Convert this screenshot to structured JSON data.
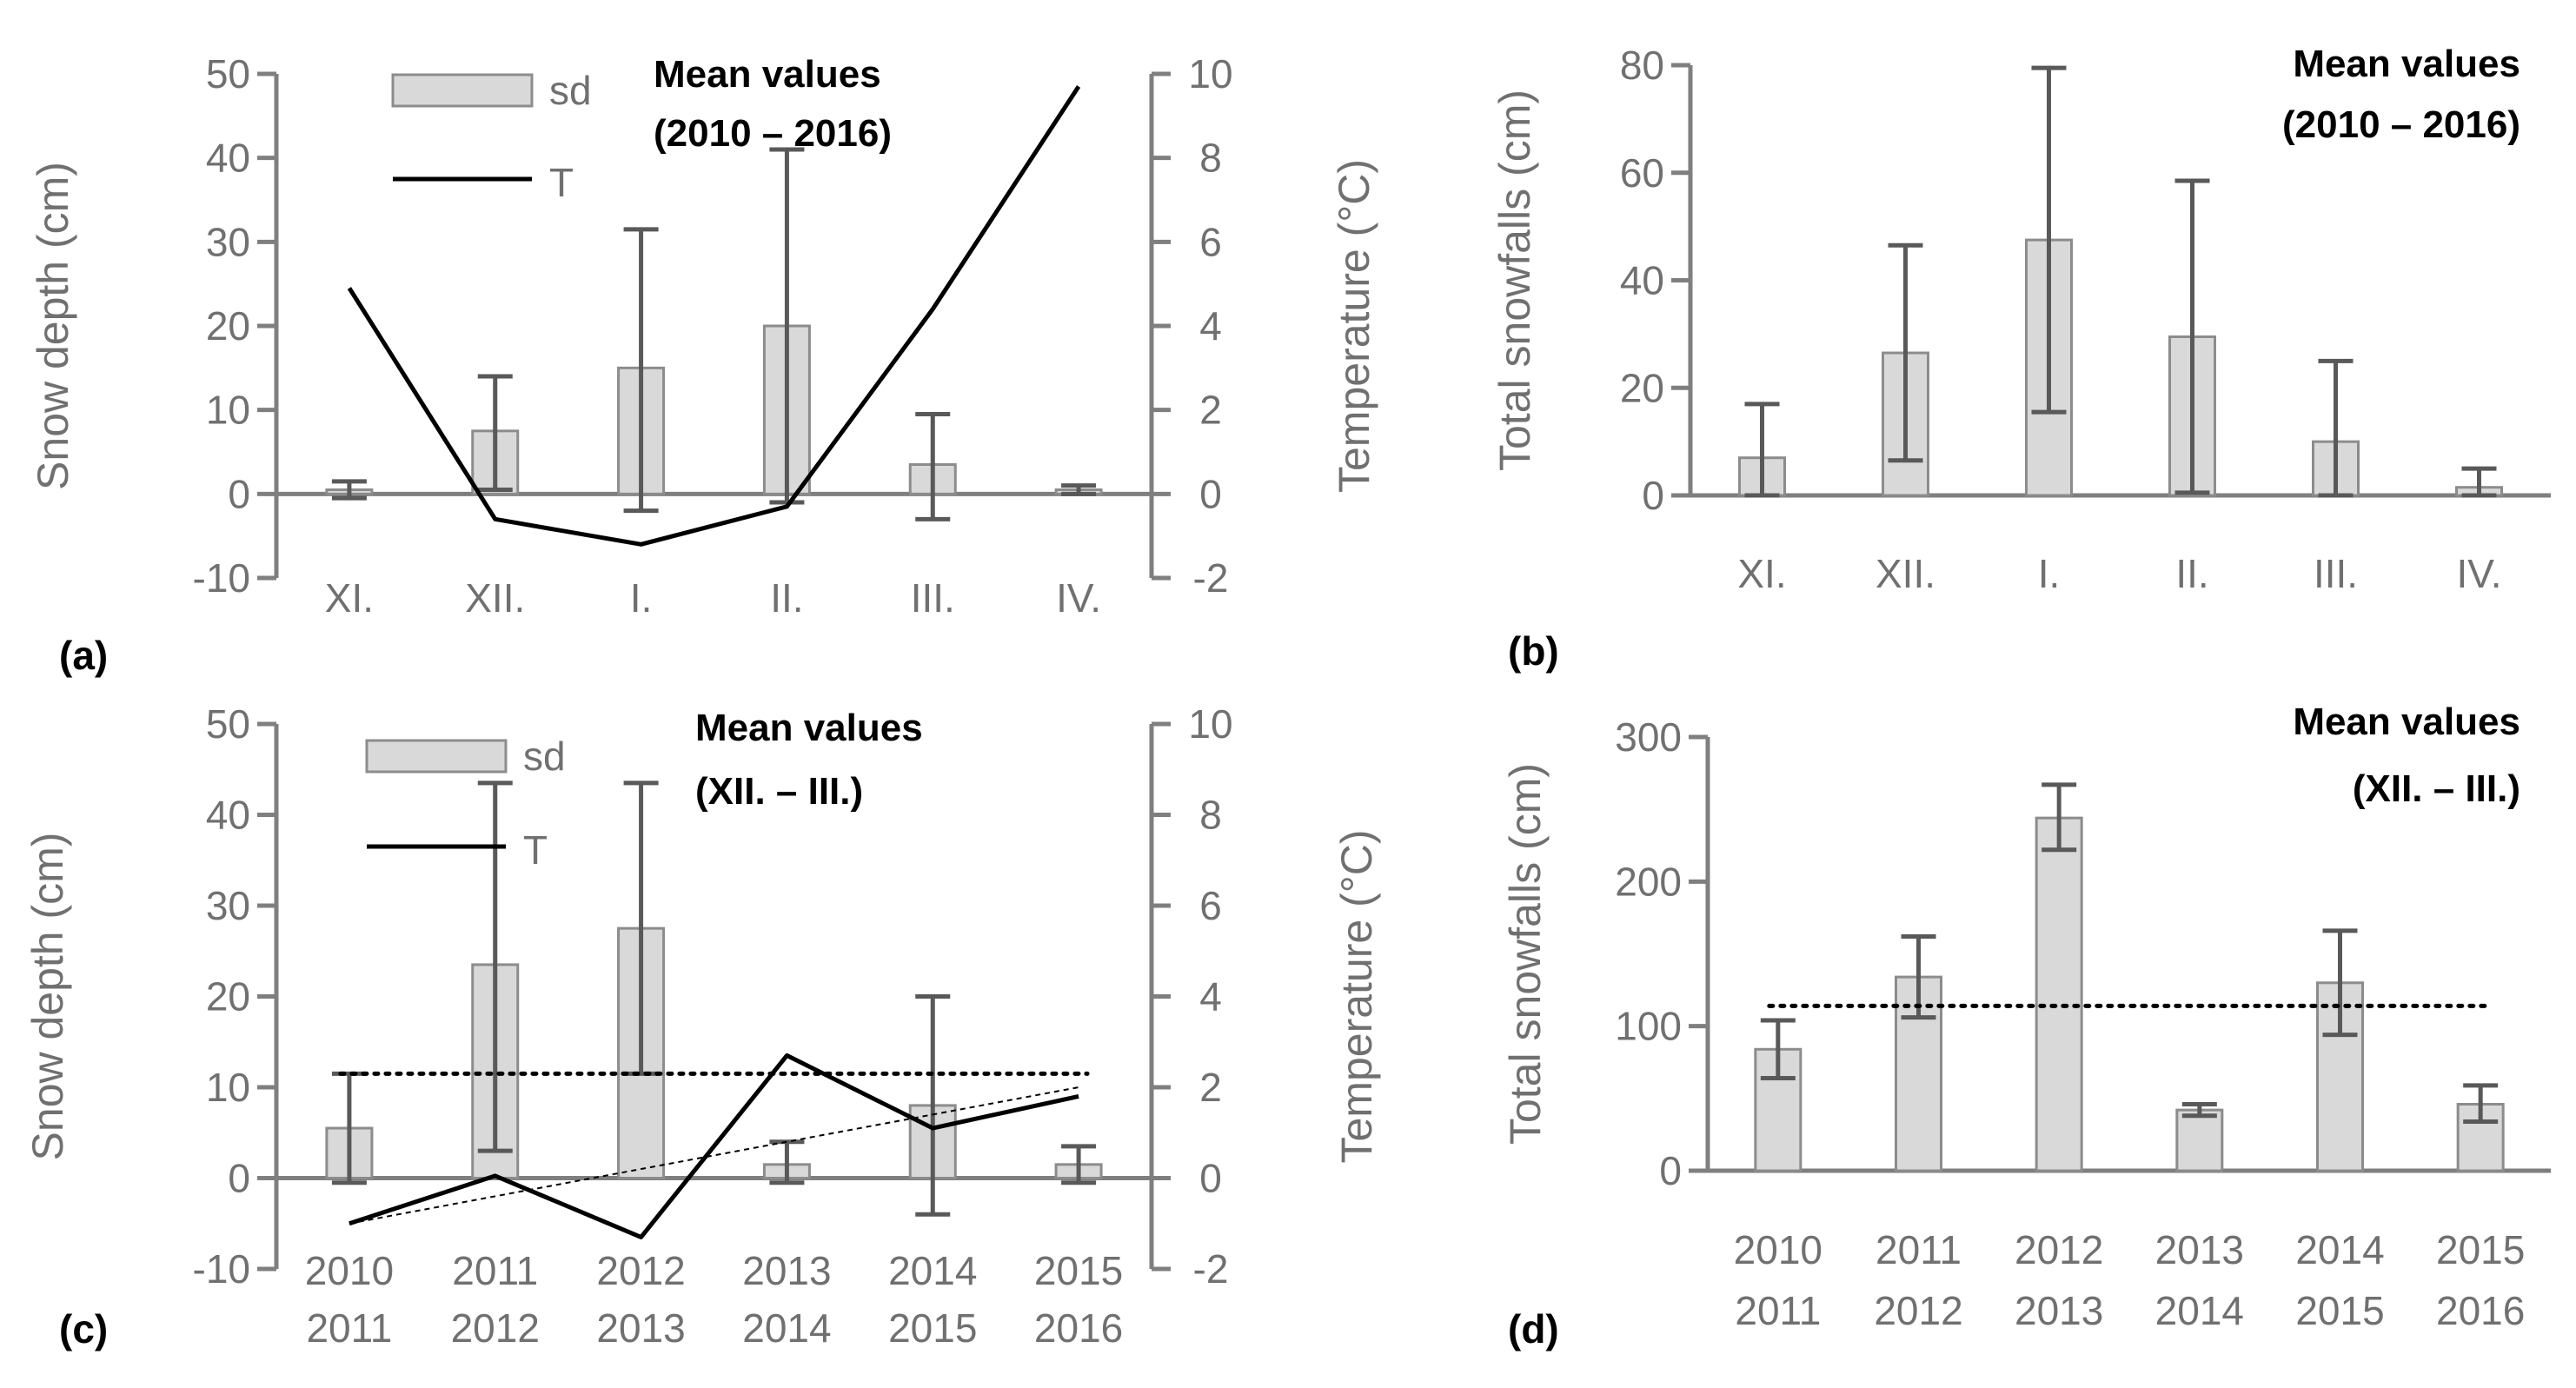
{
  "colors": {
    "axis": "#7f7f7f",
    "bar_fill": "#d9d9d9",
    "bar_stroke": "#8c8c8c",
    "err": "#595959",
    "line": "#000000",
    "text": "#707070"
  },
  "chart_data": [
    {
      "id": "a",
      "type": "bar",
      "panel_label": "(a)",
      "annotation": [
        "Mean values",
        "(2010 – 2016)"
      ],
      "categories": [
        "XI.",
        "XII.",
        "I.",
        "II.",
        "III.",
        "IV."
      ],
      "ylabel": "Snow depth (cm)",
      "ylim": [
        -10,
        50
      ],
      "yticks": [
        "-10",
        "0",
        "10",
        "20",
        "30",
        "40",
        "50"
      ],
      "y2label": "Temperature (°C)",
      "y2lim": [
        -2,
        10
      ],
      "y2ticks": [
        "-2",
        "0",
        "2",
        "4",
        "6",
        "8",
        "10"
      ],
      "legend": [
        "sd",
        "T"
      ],
      "series": [
        {
          "name": "sd",
          "values": [
            0.5,
            7.5,
            15,
            20,
            3.5,
            0.5
          ],
          "err_low": [
            -0.5,
            0.5,
            -2,
            -1,
            -3,
            0
          ],
          "err_high": [
            1.5,
            14,
            31.5,
            41,
            9.5,
            1
          ]
        },
        {
          "name": "T",
          "axis": "y2",
          "values": [
            4.9,
            -0.6,
            -1.2,
            -0.3,
            4.4,
            9.7
          ]
        }
      ]
    },
    {
      "id": "b",
      "type": "bar",
      "panel_label": "(b)",
      "annotation": [
        "Mean values",
        "(2010 – 2016)"
      ],
      "categories": [
        "XI.",
        "XII.",
        "I.",
        "II.",
        "III.",
        "IV."
      ],
      "ylabel": "Total snowfalls (cm)",
      "ylim": [
        0,
        80
      ],
      "yticks": [
        "0",
        "20",
        "40",
        "60",
        "80"
      ],
      "series": [
        {
          "name": "sd",
          "values": [
            7,
            26.5,
            47.5,
            29.5,
            10,
            1.5
          ],
          "err_low": [
            0,
            6.5,
            15.5,
            0.5,
            0,
            0
          ],
          "err_high": [
            17,
            46.5,
            79.5,
            58.5,
            25,
            5
          ]
        }
      ]
    },
    {
      "id": "c",
      "type": "bar",
      "panel_label": "(c)",
      "annotation": [
        "Mean values",
        "(XII. – III.)"
      ],
      "categories": [
        "2010|2011",
        "2011|2012",
        "2012|2013",
        "2013|2014",
        "2014|2015",
        "2015|2016"
      ],
      "ylabel": "Snow depth (cm)",
      "ylim": [
        -10,
        50
      ],
      "yticks": [
        "-10",
        "0",
        "10",
        "20",
        "30",
        "40",
        "50"
      ],
      "y2label": "Temperature (°C)",
      "y2lim": [
        -2,
        10
      ],
      "y2ticks": [
        "-2",
        "0",
        "2",
        "4",
        "6",
        "8",
        "10"
      ],
      "legend": [
        "sd",
        "T"
      ],
      "mean_line": 11.5,
      "series": [
        {
          "name": "sd",
          "values": [
            5.5,
            23.5,
            27.5,
            1.5,
            8,
            1.5
          ],
          "err_low": [
            -0.5,
            3,
            11.5,
            -0.5,
            -4,
            -0.5
          ],
          "err_high": [
            11.5,
            43.5,
            43.5,
            4,
            20,
            3.5
          ]
        },
        {
          "name": "T",
          "axis": "y2",
          "values": [
            -1,
            0.05,
            -1.3,
            2.7,
            1.1,
            1.8
          ],
          "trend": [
            -1,
            2
          ]
        }
      ]
    },
    {
      "id": "d",
      "type": "bar",
      "panel_label": "(d)",
      "annotation": [
        "Mean values",
        "(XII. – III.)"
      ],
      "categories": [
        "2010|2011",
        "2011|2012",
        "2012|2013",
        "2013|2014",
        "2014|2015",
        "2015|2016"
      ],
      "ylabel": "Total snowfalls (cm)",
      "ylim": [
        0,
        300
      ],
      "yticks": [
        "0",
        "100",
        "200",
        "300"
      ],
      "mean_line": 114,
      "series": [
        {
          "name": "sd",
          "values": [
            84,
            134,
            244,
            42,
            130,
            46
          ],
          "err_low": [
            64,
            106,
            222,
            38,
            94,
            34
          ],
          "err_high": [
            104,
            162,
            267,
            46,
            166,
            59
          ]
        }
      ]
    }
  ]
}
